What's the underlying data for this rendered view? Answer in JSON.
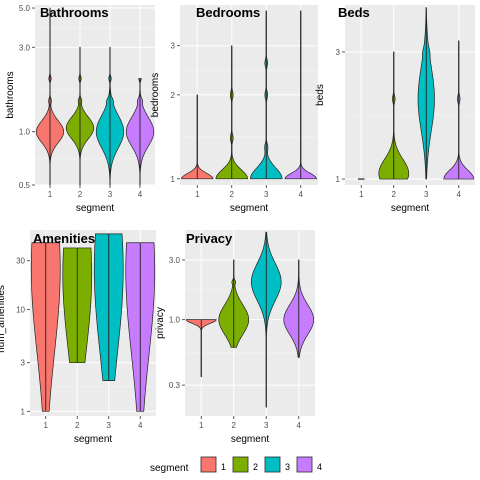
{
  "legend": {
    "title": "segment",
    "entries": [
      {
        "label": "1",
        "color": "#F8766D"
      },
      {
        "label": "2",
        "color": "#7CAE00"
      },
      {
        "label": "3",
        "color": "#00BFC4"
      },
      {
        "label": "4",
        "color": "#C77CFF"
      }
    ]
  },
  "chart_data": [
    {
      "type": "violin",
      "title": "Bathrooms",
      "xlabel": "segment",
      "ylabel": "bathrooms",
      "scale": "log",
      "categories": [
        "1",
        "2",
        "3",
        "4"
      ],
      "yticks": [
        "0.5",
        "1.0",
        "3.0",
        "5.0"
      ],
      "yticks_values": [
        0.5,
        1.0,
        3.0,
        5.0
      ],
      "ylim": [
        0.5,
        5.2
      ],
      "series": [
        {
          "category": "1",
          "min": 0.5,
          "max": 5.0,
          "mode": 1.0,
          "spread": 0.06,
          "tail_bumps": [
            1.5,
            2.0
          ]
        },
        {
          "category": "2",
          "min": 0.5,
          "max": 3.0,
          "mode": 1.05,
          "spread": 0.06,
          "tail_bumps": [
            1.5,
            2.0
          ]
        },
        {
          "category": "3",
          "min": 0.5,
          "max": 3.0,
          "mode": 1.0,
          "spread": 0.09,
          "tail_bumps": [
            1.5,
            2.0
          ]
        },
        {
          "category": "4",
          "min": 0.5,
          "max": 2.0,
          "mode": 1.0,
          "spread": 0.08,
          "tail_bumps": [
            1.5,
            2.0
          ]
        }
      ]
    },
    {
      "type": "violin",
      "title": "Bedrooms",
      "xlabel": "segment",
      "ylabel": "bedrooms",
      "scale": "log",
      "categories": [
        "1",
        "2",
        "3",
        "4"
      ],
      "yticks": [
        "1",
        "2",
        "3"
      ],
      "yticks_values": [
        1,
        2,
        3
      ],
      "ylim": [
        0.95,
        4.2
      ],
      "series": [
        {
          "category": "1",
          "min": 1,
          "max": 2.0,
          "mode": 1.0,
          "spread": 0.03,
          "tail_bumps": []
        },
        {
          "category": "2",
          "min": 1,
          "max": 3.0,
          "mode": 1.0,
          "spread": 0.05,
          "tail_bumps": [
            1.4,
            2.0
          ]
        },
        {
          "category": "3",
          "min": 1,
          "max": 4.0,
          "mode": 1.0,
          "spread": 0.06,
          "tail_bumps": [
            1.3,
            2.0,
            2.6
          ]
        },
        {
          "category": "4",
          "min": 1,
          "max": 4.0,
          "mode": 1.0,
          "spread": 0.03,
          "tail_bumps": []
        }
      ]
    },
    {
      "type": "violin",
      "title": "Beds",
      "xlabel": "segment",
      "ylabel": "beds",
      "scale": "log",
      "categories": [
        "1",
        "2",
        "3",
        "4"
      ],
      "yticks": [
        "1",
        "3"
      ],
      "yticks_values": [
        1,
        3
      ],
      "ylim": [
        0.95,
        4.5
      ],
      "series": [
        {
          "category": "1",
          "min": 1,
          "max": 1,
          "mode": 1.0,
          "spread": 0.0,
          "tail_bumps": []
        },
        {
          "category": "2",
          "min": 1,
          "max": 3.0,
          "mode": 1.05,
          "spread": 0.08,
          "tail_bumps": [
            2.0
          ]
        },
        {
          "category": "3",
          "min": 1,
          "max": 4.4,
          "mode": 2.0,
          "spread": 0.18,
          "tail_bumps": [
            3.0
          ]
        },
        {
          "category": "4",
          "min": 1,
          "max": 3.3,
          "mode": 1.0,
          "spread": 0.05,
          "tail_bumps": [
            2.0
          ]
        }
      ]
    },
    {
      "type": "violin",
      "title": "Amenities",
      "xlabel": "segment",
      "ylabel": "num_amenities",
      "scale": "log",
      "categories": [
        "1",
        "2",
        "3",
        "4"
      ],
      "yticks": [
        "1",
        "3",
        "10",
        "30"
      ],
      "yticks_values": [
        1,
        3,
        10,
        30
      ],
      "ylim": [
        0.9,
        60
      ],
      "series": [
        {
          "category": "1",
          "min": 1,
          "max": 45,
          "mode": 25,
          "spread": 0.45,
          "tail_bumps": []
        },
        {
          "category": "2",
          "min": 3,
          "max": 40,
          "mode": 22,
          "spread": 0.42,
          "tail_bumps": []
        },
        {
          "category": "3",
          "min": 2,
          "max": 55,
          "mode": 25,
          "spread": 0.45,
          "tail_bumps": []
        },
        {
          "category": "4",
          "min": 1,
          "max": 45,
          "mode": 24,
          "spread": 0.45,
          "tail_bumps": []
        }
      ]
    },
    {
      "type": "violin",
      "title": "Privacy",
      "xlabel": "segment",
      "ylabel": "privacy",
      "scale": "log",
      "categories": [
        "1",
        "2",
        "3",
        "4"
      ],
      "yticks": [
        "0.3",
        "1.0",
        "3.0"
      ],
      "yticks_values": [
        0.3,
        1.0,
        3.0
      ],
      "ylim": [
        0.17,
        5.2
      ],
      "series": [
        {
          "category": "1",
          "min": 0.35,
          "max": 1.0,
          "mode": 1.0,
          "spread": 0.02,
          "tail_bumps": []
        },
        {
          "category": "2",
          "min": 0.6,
          "max": 3.0,
          "mode": 1.0,
          "spread": 0.08,
          "tail_bumps": [
            2.0
          ]
        },
        {
          "category": "3",
          "min": 0.2,
          "max": 5.0,
          "mode": 2.0,
          "spread": 0.1,
          "tail_bumps": []
        },
        {
          "category": "4",
          "min": 0.5,
          "max": 3.0,
          "mode": 1.0,
          "spread": 0.08,
          "tail_bumps": []
        }
      ]
    }
  ]
}
